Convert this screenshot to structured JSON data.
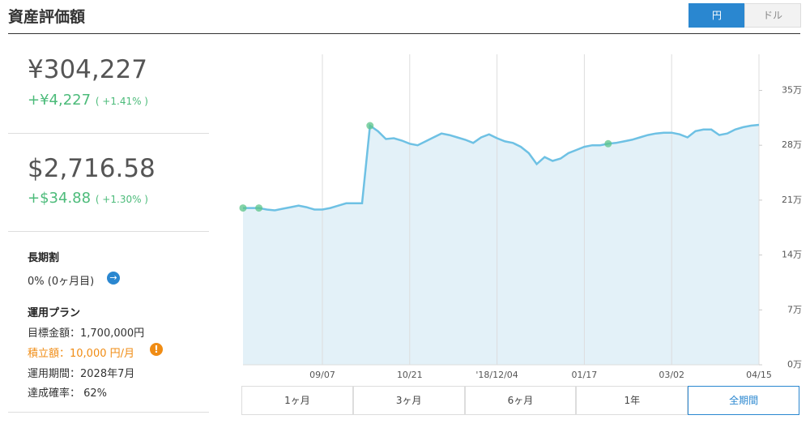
{
  "header": {
    "title": "資産評価額",
    "currency_toggle": [
      "円",
      "ドル"
    ]
  },
  "summary": {
    "yen": {
      "total": "¥304,227",
      "change": "+¥4,227",
      "pct": "( +1.41% )"
    },
    "usd": {
      "total": "$2,716.58",
      "change": "+$34.88",
      "pct": "( +1.30% )"
    }
  },
  "long_term": {
    "title": "長期割",
    "value": "0% (0ヶ月目)"
  },
  "plan": {
    "title": "運用プラン",
    "items": [
      "目標金額：1,700,000円",
      "積立額：10,000 円/月",
      "運用期間：2028年7月",
      "達成確率： 62%"
    ]
  },
  "range_buttons": [
    "1ヶ月",
    "3ヶ月",
    "6ヶ月",
    "1年",
    "全期間"
  ],
  "chart_data": {
    "type": "line",
    "color": "#6ec1e4",
    "fill": "#e3f1f8",
    "categories": [
      null,
      null,
      null,
      null,
      null,
      null,
      null,
      null,
      null,
      null,
      "09/07",
      null,
      null,
      null,
      null,
      null,
      null,
      null,
      null,
      null,
      null,
      "10/21",
      null,
      null,
      null,
      null,
      null,
      null,
      null,
      null,
      null,
      null,
      "'18/12/04",
      null,
      null,
      null,
      null,
      null,
      null,
      null,
      null,
      null,
      null,
      "01/17",
      null,
      null,
      null,
      null,
      null,
      null,
      null,
      null,
      null,
      null,
      "03/02",
      null,
      null,
      null,
      null,
      null,
      null,
      null,
      null,
      null,
      null,
      "04/15"
    ],
    "values": [
      20.0,
      20.0,
      20.0,
      19.8,
      19.7,
      19.9,
      20.1,
      20.3,
      20.1,
      19.8,
      19.8,
      20.0,
      20.3,
      20.6,
      20.6,
      20.6,
      30.5,
      29.8,
      28.8,
      28.9,
      28.6,
      28.2,
      28.0,
      28.5,
      29.0,
      29.5,
      29.3,
      29.0,
      28.7,
      28.3,
      29.0,
      29.4,
      28.9,
      28.5,
      28.3,
      27.8,
      27.0,
      25.6,
      26.5,
      26.0,
      26.3,
      27.0,
      27.4,
      27.8,
      28.0,
      28.0,
      28.2,
      28.3,
      28.5,
      28.7,
      29.0,
      29.3,
      29.5,
      29.6,
      29.6,
      29.4,
      29.0,
      29.8,
      30.0,
      30.0,
      29.3,
      29.5,
      30.0,
      30.3,
      30.5,
      30.6
    ],
    "ylim": [
      0,
      39.6
    ],
    "yticks": [
      {
        "value": 0,
        "label": "0万"
      },
      {
        "value": 7,
        "label": "7万"
      },
      {
        "value": 14,
        "label": "14万"
      },
      {
        "value": 21,
        "label": "21万"
      },
      {
        "value": 28,
        "label": "28万"
      },
      {
        "value": 35,
        "label": "35万"
      }
    ]
  }
}
